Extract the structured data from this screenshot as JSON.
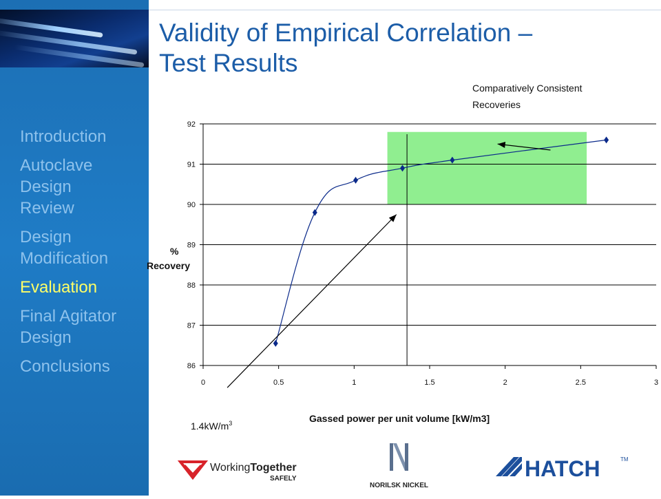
{
  "slide": {
    "title_line1": "Validity of Empirical Correlation –",
    "title_line2": "Test Results"
  },
  "sidebar": {
    "items": [
      {
        "label_lines": [
          "Introduction"
        ],
        "active": false
      },
      {
        "label_lines": [
          "Autoclave",
          "Design",
          "Review"
        ],
        "active": false
      },
      {
        "label_lines": [
          "Design",
          "Modification"
        ],
        "active": false
      },
      {
        "label_lines": [
          "Evaluation"
        ],
        "active": true
      },
      {
        "label_lines": [
          "Final Agitator",
          "Design"
        ],
        "active": false
      },
      {
        "label_lines": [
          "Conclusions"
        ],
        "active": false
      }
    ]
  },
  "annotations": {
    "consistent_line1": "Comparatively Consistent",
    "consistent_line2": "Recoveries",
    "threshold_prefix": "1.4kW/m",
    "threshold_sup": "3"
  },
  "logos": {
    "wts_working": "Working",
    "wts_together": "Together",
    "wts_safely": "SAFELY",
    "norilsk": "NORILSK NICKEL",
    "hatch": "HATCH",
    "hatch_tm": "TM"
  },
  "colors": {
    "series": "#0b2a8a",
    "highlight": "#90ee90",
    "accent_title": "#1c5da8",
    "sidebar": "#1f7cc6",
    "active_nav": "#ffff66"
  },
  "chart_data": {
    "type": "line",
    "xlabel": "Gassed power per unit volume [kW/m3]",
    "ylabel_line1": "%",
    "ylabel_line2": "Recovery",
    "xlim": [
      0,
      3
    ],
    "ylim": [
      86,
      92
    ],
    "x_ticks": [
      "0",
      "0.5",
      "1",
      "1.5",
      "2",
      "2.5",
      "3"
    ],
    "y_ticks": [
      "86",
      "87",
      "88",
      "89",
      "90",
      "91",
      "92"
    ],
    "grid": "horizontal",
    "series": [
      {
        "x": [
          0.48,
          0.74,
          1.01,
          1.32,
          1.65,
          2.67
        ],
        "y": [
          86.55,
          89.8,
          90.6,
          90.9,
          91.1,
          91.6
        ]
      }
    ],
    "highlight_region": {
      "x": [
        1.22,
        2.54
      ],
      "y": [
        90.0,
        91.8
      ]
    },
    "vertical_line_x": 1.35,
    "arrows": [
      {
        "from": [
          2.3,
          91.35
        ],
        "to": [
          1.95,
          91.5
        ]
      },
      {
        "from": [
          0.16,
          85.45
        ],
        "to": [
          1.28,
          89.75
        ]
      }
    ]
  }
}
